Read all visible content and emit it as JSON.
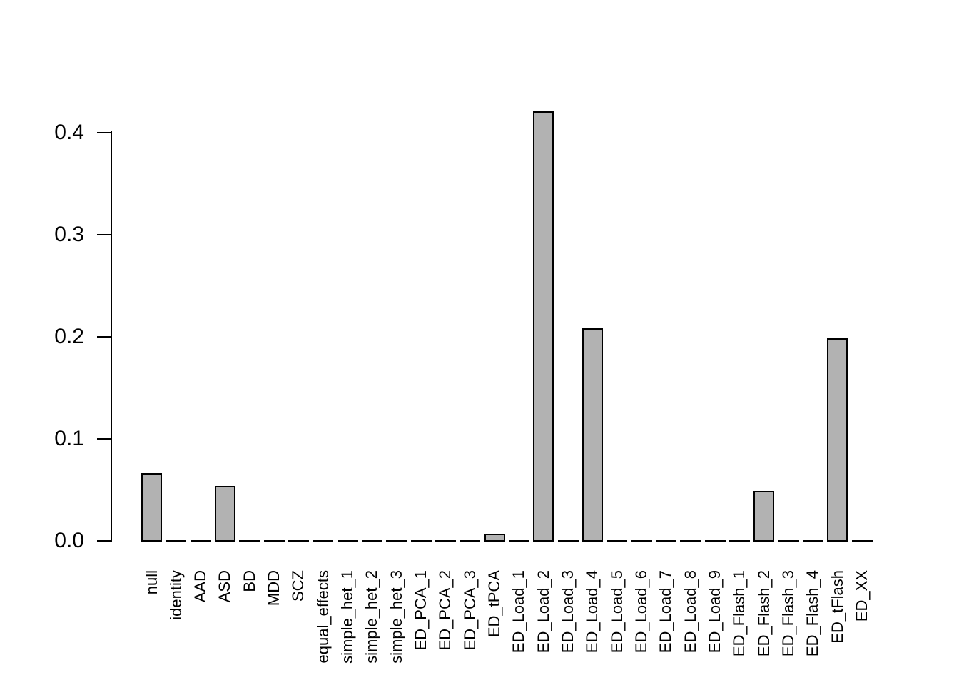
{
  "chart_data": {
    "type": "bar",
    "title": "",
    "xlabel": "",
    "ylabel": "",
    "categories": [
      "null",
      "identity",
      "AAD",
      "ASD",
      "BD",
      "MDD",
      "SCZ",
      "equal_effects",
      "simple_het_1",
      "simple_het_2",
      "simple_het_3",
      "ED_PCA_1",
      "ED_PCA_2",
      "ED_PCA_3",
      "ED_tPCA",
      "ED_Load_1",
      "ED_Load_2",
      "ED_Load_3",
      "ED_Load_4",
      "ED_Load_5",
      "ED_Load_6",
      "ED_Load_7",
      "ED_Load_8",
      "ED_Load_9",
      "ED_Flash_1",
      "ED_Flash_2",
      "ED_Flash_3",
      "ED_Flash_4",
      "ED_tFlash",
      "ED_XX"
    ],
    "values": [
      0.066,
      0,
      0,
      0.053,
      0,
      0,
      0,
      0,
      0,
      0,
      0,
      0,
      0,
      0,
      0.006,
      0,
      0.42,
      0,
      0.208,
      0,
      0,
      0,
      0,
      0,
      0,
      0.048,
      0,
      0,
      0.198,
      0
    ],
    "ylim": [
      0,
      0.4
    ],
    "ytick_values": [
      0,
      0.1,
      0.2,
      0.3,
      0.4
    ],
    "ytick_labels": [
      "0.0",
      "0.1",
      "0.2",
      "0.3",
      "0.4"
    ],
    "grid": false,
    "legend_position": "none",
    "bar_orientation": "vertical",
    "x_label_rotation": 90,
    "bar_fill_color": "#b2b2b2",
    "bar_border_color": "#000000",
    "axis_color": "#000000",
    "text_color": "#000000",
    "background_color": "#ffffff"
  }
}
